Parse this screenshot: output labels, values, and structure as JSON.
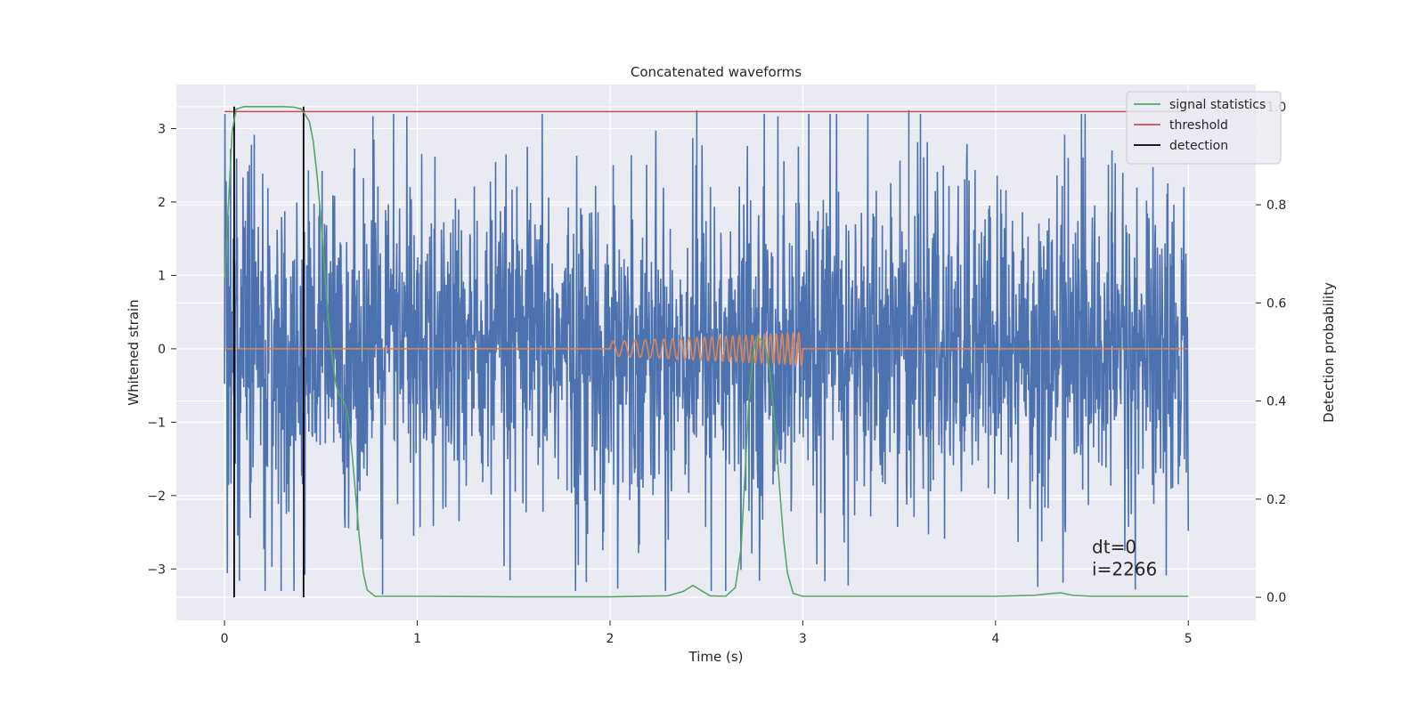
{
  "chart_data": {
    "type": "line",
    "title": "Concatenated waveforms",
    "xlabel": "Time (s)",
    "ylabel": "Whitened strain",
    "y2label": "Detection probability",
    "xlim": [
      -0.25,
      5.35
    ],
    "ylim": [
      -3.7,
      3.6
    ],
    "y2lim": [
      -0.047,
      1.045
    ],
    "xticks": [
      0,
      1,
      2,
      3,
      4,
      5
    ],
    "yticks": [
      -3,
      -2,
      -1,
      0,
      1,
      2,
      3
    ],
    "y2ticks": [
      0.0,
      0.2,
      0.4,
      0.6,
      0.8,
      1.0
    ],
    "xtick_labels": [
      "0",
      "1",
      "2",
      "3",
      "4",
      "5"
    ],
    "ytick_labels": [
      "−3",
      "−2",
      "−1",
      "0",
      "1",
      "2",
      "3"
    ],
    "y2tick_labels": [
      "0.0",
      "0.2",
      "0.4",
      "0.6",
      "0.8",
      "1.0"
    ],
    "grid": true,
    "legend_position": "top-right",
    "annotations": [
      "dt=0",
      "i=2266"
    ],
    "background_color": "#eaeaf2",
    "series": [
      {
        "key": "strain",
        "color": "#4c72b0",
        "axis": "left",
        "description_values": {
          "x_range": [
            0,
            5
          ],
          "typical_amplitude": 1.6,
          "peak_values": [
            3.25,
            -3.35
          ]
        }
      },
      {
        "key": "template",
        "color": "#dd8452",
        "axis": "left",
        "description_values": {
          "x_range": [
            0,
            5
          ],
          "chirp_x_range": [
            2,
            3
          ],
          "chirp_amplitude_start": 0.1,
          "chirp_amplitude_end": 0.22,
          "chirp_freq_start": 16,
          "chirp_freq_end": 36
        }
      },
      {
        "name": "signal statistics",
        "color": "#55a868",
        "axis": "right",
        "points": [
          [
            0.0,
            0.65
          ],
          [
            0.02,
            0.8
          ],
          [
            0.04,
            0.95
          ],
          [
            0.06,
            0.995
          ],
          [
            0.1,
            1.0
          ],
          [
            0.2,
            1.0
          ],
          [
            0.3,
            1.0
          ],
          [
            0.36,
            0.999
          ],
          [
            0.4,
            0.995
          ],
          [
            0.44,
            0.97
          ],
          [
            0.46,
            0.93
          ],
          [
            0.48,
            0.86
          ],
          [
            0.5,
            0.77
          ],
          [
            0.52,
            0.66
          ],
          [
            0.54,
            0.56
          ],
          [
            0.56,
            0.48
          ],
          [
            0.58,
            0.43
          ],
          [
            0.6,
            0.41
          ],
          [
            0.62,
            0.4
          ],
          [
            0.64,
            0.37
          ],
          [
            0.66,
            0.3
          ],
          [
            0.68,
            0.21
          ],
          [
            0.7,
            0.12
          ],
          [
            0.72,
            0.05
          ],
          [
            0.74,
            0.015
          ],
          [
            0.78,
            0.002
          ],
          [
            1.0,
            0.002
          ],
          [
            1.5,
            0.001
          ],
          [
            2.0,
            0.001
          ],
          [
            2.3,
            0.003
          ],
          [
            2.38,
            0.012
          ],
          [
            2.43,
            0.024
          ],
          [
            2.48,
            0.012
          ],
          [
            2.52,
            0.003
          ],
          [
            2.6,
            0.002
          ],
          [
            2.65,
            0.02
          ],
          [
            2.68,
            0.1
          ],
          [
            2.7,
            0.25
          ],
          [
            2.72,
            0.4
          ],
          [
            2.74,
            0.49
          ],
          [
            2.76,
            0.53
          ],
          [
            2.8,
            0.52
          ],
          [
            2.83,
            0.46
          ],
          [
            2.86,
            0.33
          ],
          [
            2.88,
            0.22
          ],
          [
            2.9,
            0.12
          ],
          [
            2.92,
            0.05
          ],
          [
            2.95,
            0.008
          ],
          [
            3.0,
            0.002
          ],
          [
            4.0,
            0.002
          ],
          [
            4.2,
            0.004
          ],
          [
            4.3,
            0.008
          ],
          [
            4.34,
            0.009
          ],
          [
            4.4,
            0.004
          ],
          [
            4.5,
            0.002
          ],
          [
            5.0,
            0.002
          ]
        ]
      },
      {
        "name": "threshold",
        "color": "#c44e52",
        "axis": "right",
        "x": [
          0,
          5
        ],
        "values": [
          0.99,
          0.99
        ]
      },
      {
        "name": "detection",
        "color": "#000000",
        "axis": "right",
        "x_positions": [
          0.05,
          0.41
        ],
        "range": [
          0.0,
          1.0
        ]
      }
    ]
  }
}
